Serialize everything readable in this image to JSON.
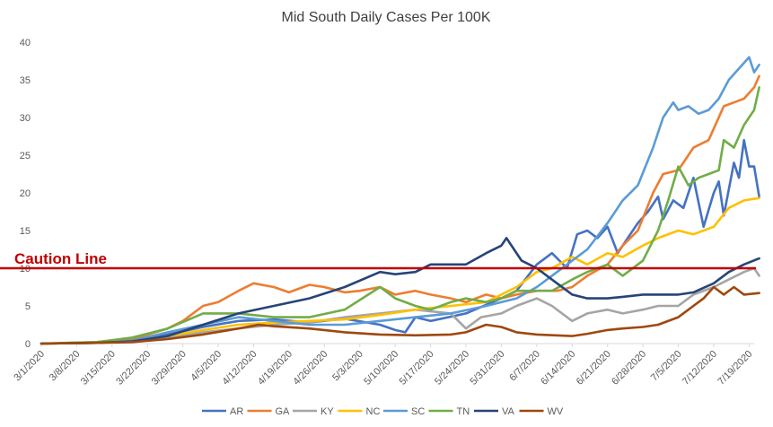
{
  "chart_data": {
    "type": "line",
    "title": "Mid South Daily Cases Per 100K",
    "xlabel": "",
    "ylabel": "",
    "ylim": [
      0,
      40
    ],
    "yticks": [
      0,
      5,
      10,
      15,
      20,
      25,
      30,
      35,
      40
    ],
    "x_range": [
      "3/1/2020",
      "7/20/2020"
    ],
    "x_tick_labels": [
      "3/1/2020",
      "3/8/2020",
      "3/15/2020",
      "3/22/2020",
      "3/29/2020",
      "4/5/2020",
      "4/12/2020",
      "4/19/2020",
      "4/26/2020",
      "5/3/2020",
      "5/10/2020",
      "5/17/2020",
      "5/24/2020",
      "5/31/2020",
      "6/7/2020",
      "6/14/2020",
      "6/21/2020",
      "6/28/2020",
      "7/5/2020",
      "7/12/2020",
      "7/19/2020"
    ],
    "grid": "none",
    "legend_position": "bottom",
    "reference_line": {
      "label": "Caution Line",
      "value": 10,
      "color": "#c00000"
    },
    "series": [
      {
        "name": "AR",
        "color": "#4472c4",
        "points": [
          [
            "3/1/2020",
            0
          ],
          [
            "3/12/2020",
            0.1
          ],
          [
            "3/19/2020",
            0.4
          ],
          [
            "3/26/2020",
            1.2
          ],
          [
            "4/2/2020",
            2.2
          ],
          [
            "4/9/2020",
            3
          ],
          [
            "4/16/2020",
            3.2
          ],
          [
            "4/23/2020",
            2.8
          ],
          [
            "4/30/2020",
            3.3
          ],
          [
            "5/7/2020",
            2.5
          ],
          [
            "5/10/2020",
            1.8
          ],
          [
            "5/12/2020",
            1.5
          ],
          [
            "5/14/2020",
            3.5
          ],
          [
            "5/17/2020",
            3
          ],
          [
            "5/24/2020",
            4
          ],
          [
            "5/31/2020",
            6
          ],
          [
            "6/3/2020",
            7
          ],
          [
            "6/7/2020",
            10.5
          ],
          [
            "6/10/2020",
            12
          ],
          [
            "6/13/2020",
            10
          ],
          [
            "6/15/2020",
            14.5
          ],
          [
            "6/17/2020",
            15
          ],
          [
            "6/19/2020",
            14
          ],
          [
            "6/21/2020",
            15.5
          ],
          [
            "6/23/2020",
            12
          ],
          [
            "6/25/2020",
            14
          ],
          [
            "6/27/2020",
            16
          ],
          [
            "6/29/2020",
            17.5
          ],
          [
            "7/1/2020",
            19.5
          ],
          [
            "7/2/2020",
            16.5
          ],
          [
            "7/4/2020",
            19
          ],
          [
            "7/6/2020",
            18
          ],
          [
            "7/8/2020",
            22
          ],
          [
            "7/10/2020",
            15.5
          ],
          [
            "7/12/2020",
            20
          ],
          [
            "7/13/2020",
            21.5
          ],
          [
            "7/14/2020",
            17
          ],
          [
            "7/16/2020",
            24
          ],
          [
            "7/17/2020",
            22
          ],
          [
            "7/18/2020",
            27
          ],
          [
            "7/19/2020",
            23.5
          ],
          [
            "7/20/2020",
            23.5
          ],
          [
            "7/21/2020",
            19.5
          ]
        ]
      },
      {
        "name": "GA",
        "color": "#ed7d31",
        "points": [
          [
            "3/1/2020",
            0
          ],
          [
            "3/12/2020",
            0.2
          ],
          [
            "3/19/2020",
            0.6
          ],
          [
            "3/26/2020",
            2
          ],
          [
            "3/29/2020",
            3
          ],
          [
            "4/2/2020",
            5
          ],
          [
            "4/5/2020",
            5.5
          ],
          [
            "4/9/2020",
            7
          ],
          [
            "4/12/2020",
            8
          ],
          [
            "4/16/2020",
            7.5
          ],
          [
            "4/19/2020",
            6.8
          ],
          [
            "4/23/2020",
            7.8
          ],
          [
            "4/26/2020",
            7.5
          ],
          [
            "4/30/2020",
            6.8
          ],
          [
            "5/3/2020",
            7
          ],
          [
            "5/7/2020",
            7.5
          ],
          [
            "5/10/2020",
            6.5
          ],
          [
            "5/14/2020",
            7
          ],
          [
            "5/17/2020",
            6.5
          ],
          [
            "5/21/2020",
            6
          ],
          [
            "5/24/2020",
            5.5
          ],
          [
            "5/28/2020",
            6.5
          ],
          [
            "5/31/2020",
            6
          ],
          [
            "6/3/2020",
            6.5
          ],
          [
            "6/7/2020",
            7
          ],
          [
            "6/11/2020",
            7
          ],
          [
            "6/14/2020",
            7.5
          ],
          [
            "6/17/2020",
            9
          ],
          [
            "6/21/2020",
            10.5
          ],
          [
            "6/24/2020",
            13
          ],
          [
            "6/27/2020",
            15
          ],
          [
            "6/30/2020",
            20
          ],
          [
            "7/2/2020",
            22.5
          ],
          [
            "7/5/2020",
            23
          ],
          [
            "7/8/2020",
            26
          ],
          [
            "7/11/2020",
            27
          ],
          [
            "7/14/2020",
            31.5
          ],
          [
            "7/16/2020",
            32
          ],
          [
            "7/18/2020",
            32.5
          ],
          [
            "7/20/2020",
            34
          ],
          [
            "7/21/2020",
            35.5
          ]
        ]
      },
      {
        "name": "KY",
        "color": "#a5a5a5",
        "points": [
          [
            "3/1/2020",
            0
          ],
          [
            "3/12/2020",
            0.1
          ],
          [
            "3/19/2020",
            0.3
          ],
          [
            "3/26/2020",
            0.8
          ],
          [
            "4/2/2020",
            1.5
          ],
          [
            "4/9/2020",
            2
          ],
          [
            "4/16/2020",
            2.5
          ],
          [
            "4/23/2020",
            2.8
          ],
          [
            "4/30/2020",
            3.5
          ],
          [
            "5/7/2020",
            4
          ],
          [
            "5/14/2020",
            4.5
          ],
          [
            "5/21/2020",
            4
          ],
          [
            "5/24/2020",
            2
          ],
          [
            "5/27/2020",
            3.5
          ],
          [
            "5/31/2020",
            4
          ],
          [
            "6/3/2020",
            5
          ],
          [
            "6/7/2020",
            6
          ],
          [
            "6/10/2020",
            5
          ],
          [
            "6/14/2020",
            3
          ],
          [
            "6/17/2020",
            4
          ],
          [
            "6/21/2020",
            4.5
          ],
          [
            "6/24/2020",
            4
          ],
          [
            "6/28/2020",
            4.5
          ],
          [
            "7/1/2020",
            5
          ],
          [
            "7/5/2020",
            5
          ],
          [
            "7/8/2020",
            6.5
          ],
          [
            "7/12/2020",
            7.5
          ],
          [
            "7/15/2020",
            8.5
          ],
          [
            "7/18/2020",
            9.5
          ],
          [
            "7/20/2020",
            10
          ],
          [
            "7/21/2020",
            9
          ]
        ]
      },
      {
        "name": "NC",
        "color": "#ffc000",
        "points": [
          [
            "3/1/2020",
            0
          ],
          [
            "3/12/2020",
            0.1
          ],
          [
            "3/19/2020",
            0.3
          ],
          [
            "3/26/2020",
            1
          ],
          [
            "4/2/2020",
            1.8
          ],
          [
            "4/9/2020",
            2.5
          ],
          [
            "4/16/2020",
            2.8
          ],
          [
            "4/23/2020",
            3
          ],
          [
            "4/30/2020",
            3.2
          ],
          [
            "5/7/2020",
            3.8
          ],
          [
            "5/14/2020",
            4.5
          ],
          [
            "5/21/2020",
            5
          ],
          [
            "5/28/2020",
            5.5
          ],
          [
            "6/3/2020",
            7.5
          ],
          [
            "6/7/2020",
            9.5
          ],
          [
            "6/10/2020",
            10
          ],
          [
            "6/14/2020",
            11.5
          ],
          [
            "6/17/2020",
            10.5
          ],
          [
            "6/21/2020",
            12
          ],
          [
            "6/24/2020",
            11.5
          ],
          [
            "6/28/2020",
            13
          ],
          [
            "7/1/2020",
            14
          ],
          [
            "7/5/2020",
            15
          ],
          [
            "7/8/2020",
            14.5
          ],
          [
            "7/12/2020",
            15.5
          ],
          [
            "7/15/2020",
            18
          ],
          [
            "7/18/2020",
            19
          ],
          [
            "7/21/2020",
            19.3
          ]
        ]
      },
      {
        "name": "SC",
        "color": "#5b9bd5",
        "points": [
          [
            "3/1/2020",
            0
          ],
          [
            "3/12/2020",
            0.1
          ],
          [
            "3/19/2020",
            0.4
          ],
          [
            "3/26/2020",
            1.5
          ],
          [
            "4/2/2020",
            2.5
          ],
          [
            "4/9/2020",
            3.5
          ],
          [
            "4/16/2020",
            3
          ],
          [
            "4/23/2020",
            2.5
          ],
          [
            "4/30/2020",
            2.5
          ],
          [
            "5/7/2020",
            3
          ],
          [
            "5/14/2020",
            3.5
          ],
          [
            "5/21/2020",
            4
          ],
          [
            "5/28/2020",
            5
          ],
          [
            "6/3/2020",
            6
          ],
          [
            "6/7/2020",
            7.5
          ],
          [
            "6/10/2020",
            9
          ],
          [
            "6/14/2020",
            11
          ],
          [
            "6/17/2020",
            12.5
          ],
          [
            "6/21/2020",
            16
          ],
          [
            "6/24/2020",
            19
          ],
          [
            "6/27/2020",
            21
          ],
          [
            "6/30/2020",
            26
          ],
          [
            "7/2/2020",
            30
          ],
          [
            "7/4/2020",
            32
          ],
          [
            "7/5/2020",
            31
          ],
          [
            "7/7/2020",
            31.5
          ],
          [
            "7/9/2020",
            30.5
          ],
          [
            "7/11/2020",
            31
          ],
          [
            "7/13/2020",
            32.5
          ],
          [
            "7/15/2020",
            35
          ],
          [
            "7/17/2020",
            36.5
          ],
          [
            "7/19/2020",
            38
          ],
          [
            "7/20/2020",
            36
          ],
          [
            "7/21/2020",
            37
          ]
        ]
      },
      {
        "name": "TN",
        "color": "#70ad47",
        "points": [
          [
            "3/1/2020",
            0
          ],
          [
            "3/12/2020",
            0.2
          ],
          [
            "3/19/2020",
            0.8
          ],
          [
            "3/26/2020",
            2
          ],
          [
            "4/2/2020",
            4
          ],
          [
            "4/9/2020",
            4
          ],
          [
            "4/16/2020",
            3.5
          ],
          [
            "4/23/2020",
            3.5
          ],
          [
            "4/30/2020",
            4.5
          ],
          [
            "5/7/2020",
            7.5
          ],
          [
            "5/10/2020",
            6
          ],
          [
            "5/14/2020",
            5
          ],
          [
            "5/17/2020",
            4.5
          ],
          [
            "5/21/2020",
            5.5
          ],
          [
            "5/24/2020",
            6
          ],
          [
            "5/28/2020",
            5.5
          ],
          [
            "5/31/2020",
            6
          ],
          [
            "6/3/2020",
            7
          ],
          [
            "6/7/2020",
            7
          ],
          [
            "6/10/2020",
            7
          ],
          [
            "6/14/2020",
            8.5
          ],
          [
            "6/17/2020",
            9.5
          ],
          [
            "6/21/2020",
            10.5
          ],
          [
            "6/24/2020",
            9
          ],
          [
            "6/28/2020",
            11
          ],
          [
            "7/1/2020",
            15
          ],
          [
            "7/3/2020",
            19
          ],
          [
            "7/5/2020",
            23.5
          ],
          [
            "7/7/2020",
            21
          ],
          [
            "7/9/2020",
            22
          ],
          [
            "7/11/2020",
            22.5
          ],
          [
            "7/13/2020",
            23
          ],
          [
            "7/14/2020",
            27
          ],
          [
            "7/16/2020",
            26
          ],
          [
            "7/18/2020",
            29
          ],
          [
            "7/20/2020",
            31
          ],
          [
            "7/21/2020",
            34
          ]
        ]
      },
      {
        "name": "VA",
        "color": "#264478",
        "points": [
          [
            "3/1/2020",
            0
          ],
          [
            "3/12/2020",
            0.1
          ],
          [
            "3/19/2020",
            0.3
          ],
          [
            "3/26/2020",
            1
          ],
          [
            "4/2/2020",
            2.5
          ],
          [
            "4/9/2020",
            4
          ],
          [
            "4/16/2020",
            5
          ],
          [
            "4/23/2020",
            6
          ],
          [
            "4/30/2020",
            7.5
          ],
          [
            "5/7/2020",
            9.5
          ],
          [
            "5/10/2020",
            9.2
          ],
          [
            "5/14/2020",
            9.5
          ],
          [
            "5/17/2020",
            10.5
          ],
          [
            "5/21/2020",
            10.5
          ],
          [
            "5/24/2020",
            10.5
          ],
          [
            "5/28/2020",
            12
          ],
          [
            "5/31/2020",
            13
          ],
          [
            "6/1/2020",
            14
          ],
          [
            "6/4/2020",
            11
          ],
          [
            "6/7/2020",
            10
          ],
          [
            "6/11/2020",
            8
          ],
          [
            "6/14/2020",
            6.5
          ],
          [
            "6/17/2020",
            6
          ],
          [
            "6/21/2020",
            6
          ],
          [
            "6/24/2020",
            6.2
          ],
          [
            "6/28/2020",
            6.5
          ],
          [
            "7/1/2020",
            6.5
          ],
          [
            "7/5/2020",
            6.5
          ],
          [
            "7/8/2020",
            6.8
          ],
          [
            "7/12/2020",
            8
          ],
          [
            "7/15/2020",
            9.5
          ],
          [
            "7/18/2020",
            10.5
          ],
          [
            "7/21/2020",
            11.3
          ]
        ]
      },
      {
        "name": "WV",
        "color": "#9e480e",
        "points": [
          [
            "3/1/2020",
            0
          ],
          [
            "3/12/2020",
            0.1
          ],
          [
            "3/19/2020",
            0.2
          ],
          [
            "3/26/2020",
            0.6
          ],
          [
            "4/2/2020",
            1.2
          ],
          [
            "4/9/2020",
            2
          ],
          [
            "4/13/2020",
            2.5
          ],
          [
            "4/16/2020",
            2.3
          ],
          [
            "4/23/2020",
            2
          ],
          [
            "4/30/2020",
            1.5
          ],
          [
            "5/7/2020",
            1.2
          ],
          [
            "5/14/2020",
            1.1
          ],
          [
            "5/21/2020",
            1.2
          ],
          [
            "5/24/2020",
            1.5
          ],
          [
            "5/28/2020",
            2.5
          ],
          [
            "5/31/2020",
            2.2
          ],
          [
            "6/3/2020",
            1.5
          ],
          [
            "6/7/2020",
            1.2
          ],
          [
            "6/14/2020",
            1
          ],
          [
            "6/17/2020",
            1.3
          ],
          [
            "6/21/2020",
            1.8
          ],
          [
            "6/24/2020",
            2
          ],
          [
            "6/28/2020",
            2.2
          ],
          [
            "7/1/2020",
            2.5
          ],
          [
            "7/5/2020",
            3.5
          ],
          [
            "7/8/2020",
            5
          ],
          [
            "7/10/2020",
            6
          ],
          [
            "7/12/2020",
            7.5
          ],
          [
            "7/14/2020",
            6.5
          ],
          [
            "7/16/2020",
            7.5
          ],
          [
            "7/18/2020",
            6.5
          ],
          [
            "7/21/2020",
            6.7
          ]
        ]
      }
    ]
  }
}
